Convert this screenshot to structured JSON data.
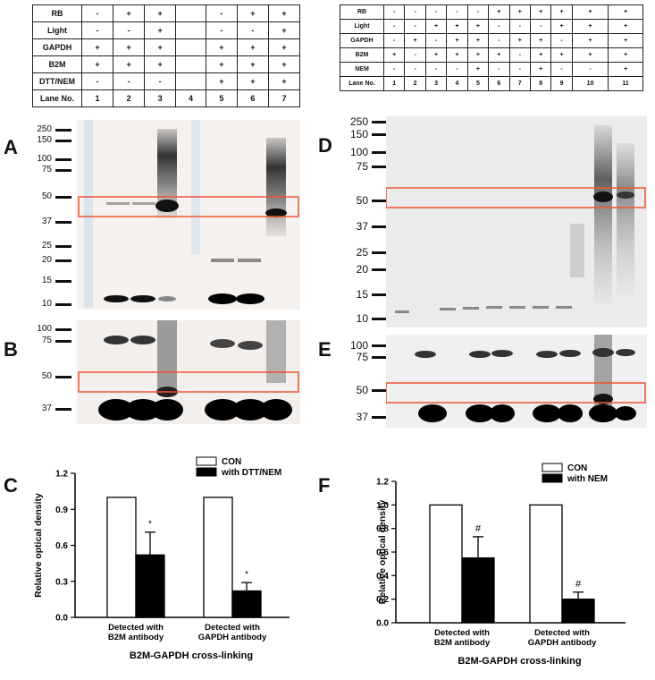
{
  "left_table": {
    "rows": [
      {
        "label": "RB",
        "cells": [
          "-",
          "+",
          "+",
          "",
          "-",
          "+",
          "+"
        ]
      },
      {
        "label": "Light",
        "cells": [
          "-",
          "-",
          "+",
          "",
          "-",
          "-",
          "+"
        ]
      },
      {
        "label": "GAPDH",
        "cells": [
          "+",
          "+",
          "+",
          "",
          "+",
          "+",
          "+"
        ]
      },
      {
        "label": "B2M",
        "cells": [
          "+",
          "+",
          "+",
          "",
          "+",
          "+",
          "+"
        ]
      },
      {
        "label": "DTT/NEM",
        "cells": [
          "-",
          "-",
          "-",
          "",
          "+",
          "+",
          "+"
        ]
      },
      {
        "label": "Lane No.",
        "cells": [
          "1",
          "2",
          "3",
          "4",
          "5",
          "6",
          "7"
        ]
      }
    ]
  },
  "right_table": {
    "rows": [
      {
        "label": "RB",
        "cells": [
          "-",
          "-",
          "-",
          "-",
          "-",
          "+",
          "+",
          "+",
          "+",
          "+",
          "+"
        ]
      },
      {
        "label": "Light",
        "cells": [
          "-",
          "-",
          "+",
          "+",
          "+",
          "-",
          "-",
          "-",
          "+",
          "+",
          "+"
        ]
      },
      {
        "label": "GAPDH",
        "cells": [
          "-",
          "+",
          "-",
          "+",
          "+",
          "-",
          "+",
          "+",
          "-",
          "+",
          "+"
        ]
      },
      {
        "label": "B2M",
        "cells": [
          "+",
          "-",
          "+",
          "+",
          "+",
          "+",
          "-",
          "+",
          "+",
          "+",
          "+"
        ]
      },
      {
        "label": "NEM",
        "cells": [
          "-",
          "-",
          "-",
          "-",
          "+",
          "-",
          "-",
          "+",
          "-",
          "-",
          "+"
        ]
      },
      {
        "label": "Lane No.",
        "cells": [
          "1",
          "2",
          "3",
          "4",
          "5",
          "6",
          "7",
          "8",
          "9",
          "10",
          "11"
        ]
      }
    ]
  },
  "panels": {
    "A": "A",
    "B": "B",
    "C": "C",
    "D": "D",
    "E": "E",
    "F": "F"
  },
  "markers": {
    "A": [
      "250",
      "150",
      "100",
      "75",
      "50",
      "37",
      "25",
      "20",
      "15",
      "10"
    ],
    "B": [
      "100",
      "75",
      "50",
      "37"
    ],
    "D": [
      "250",
      "150",
      "100",
      "75",
      "50",
      "37",
      "25",
      "20",
      "15",
      "10"
    ],
    "E": [
      "100",
      "75",
      "50",
      "37"
    ]
  },
  "chart_data": [
    {
      "type": "bar",
      "categories": [
        "Detected with B2M antibody",
        "Detected with GAPDH antibody"
      ],
      "series": [
        {
          "name": "CON",
          "values": [
            1.0,
            1.0
          ],
          "color": "#ffffff"
        },
        {
          "name": "with DTT/NEM",
          "values": [
            0.52,
            0.22
          ],
          "errors": [
            0.19,
            0.07
          ],
          "color": "#000000"
        }
      ],
      "significance": [
        "*",
        "*"
      ],
      "xlabel": "B2M-GAPDH cross-linking",
      "ylabel": "Relative optical density",
      "ylim": [
        0,
        1.2
      ],
      "yticks": [
        "0.0",
        "0.3",
        "0.6",
        "0.9",
        "1.2"
      ],
      "legend": "top-right"
    },
    {
      "type": "bar",
      "categories": [
        "Detected with B2M antibody",
        "Detected with GAPDH antibody"
      ],
      "series": [
        {
          "name": "CON",
          "values": [
            1.0,
            1.0
          ],
          "color": "#ffffff"
        },
        {
          "name": "with NEM",
          "values": [
            0.55,
            0.2
          ],
          "errors": [
            0.18,
            0.06
          ],
          "color": "#000000"
        }
      ],
      "significance": [
        "#",
        "#"
      ],
      "xlabel": "B2M-GAPDH cross-linking",
      "ylabel": "Relative optical density",
      "ylim": [
        0,
        1.2
      ],
      "yticks": [
        "0.0",
        "0.2",
        "0.4",
        "0.6",
        "0.8",
        "1.0",
        "1.2"
      ],
      "legend": "top-right"
    }
  ]
}
